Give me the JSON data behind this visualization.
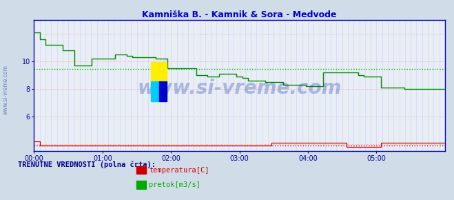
{
  "title": "Kamniška B. - Kamnik & Sora - Medvode",
  "title_color": "#0000cc",
  "bg_color": "#d0dce8",
  "plot_bg_color": "#e8eef4",
  "grid_color_h": "#ff9999",
  "grid_color_v": "#ccccff",
  "ylabel_color": "#0000aa",
  "yticks": [
    6,
    8,
    10
  ],
  "ylim": [
    3.5,
    13.0
  ],
  "xtick_labels": [
    "00:00",
    "01:00",
    "02:00",
    "03:00",
    "04:00",
    "05:00"
  ],
  "watermark": "www.si-vreme.com",
  "watermark_color": "#1a3ab8",
  "watermark_alpha": 0.3,
  "legend_label": "TRENUTNE VREDNOSTI (polna črta):",
  "legend_items": [
    {
      "label": "temperatura[C]",
      "color": "#cc0000"
    },
    {
      "label": "pretok[m3/s]",
      "color": "#00aa00"
    }
  ],
  "temp_color": "#cc0000",
  "flow_color": "#008800",
  "flow_avg_color": "#00bb00",
  "flow_avg_value": 9.43,
  "temp_avg_value": 3.9,
  "temp_avg_color": "#cc0000",
  "axis_color": "#0000cc",
  "tick_color": "#0000aa",
  "n_points": 72,
  "flow_data": [
    12.1,
    11.6,
    11.2,
    11.2,
    11.2,
    10.8,
    10.8,
    9.7,
    9.7,
    9.7,
    10.2,
    10.2,
    10.2,
    10.2,
    10.5,
    10.5,
    10.4,
    10.3,
    10.3,
    10.3,
    10.3,
    10.2,
    10.2,
    9.5,
    9.5,
    9.5,
    9.5,
    9.5,
    9.0,
    9.0,
    8.9,
    8.9,
    9.1,
    9.1,
    9.1,
    8.9,
    8.8,
    8.6,
    8.6,
    8.6,
    8.5,
    8.5,
    8.5,
    8.3,
    8.3,
    8.3,
    8.3,
    8.2,
    8.2,
    8.2,
    9.2,
    9.2,
    9.2,
    9.2,
    9.2,
    9.2,
    9.0,
    8.9,
    8.9,
    8.9,
    8.1,
    8.1,
    8.1,
    8.1,
    8.0,
    8.0,
    8.0,
    8.0,
    8.0,
    8.0,
    8.0,
    8.0
  ],
  "temp_data": [
    4.2,
    3.9,
    3.9,
    3.9,
    3.9,
    3.9,
    3.9,
    3.9,
    3.9,
    3.9,
    3.9,
    3.9,
    3.9,
    3.9,
    3.9,
    3.9,
    3.9,
    3.9,
    3.9,
    3.9,
    3.9,
    3.9,
    3.9,
    3.9,
    3.9,
    3.9,
    3.9,
    3.9,
    3.9,
    3.9,
    3.9,
    3.9,
    3.9,
    3.9,
    3.9,
    3.9,
    3.9,
    3.9,
    3.9,
    3.9,
    3.9,
    4.1,
    4.1,
    4.1,
    4.1,
    4.1,
    4.1,
    4.1,
    4.1,
    4.1,
    4.1,
    4.1,
    4.1,
    4.1,
    3.8,
    3.8,
    3.8,
    3.8,
    3.8,
    3.8,
    4.1,
    4.1,
    4.1,
    4.1,
    4.1,
    4.1,
    4.1,
    4.1,
    4.1,
    4.1,
    4.1,
    4.1
  ],
  "logo_colors": [
    "#ffee00",
    "#00ccff",
    "#0000cc"
  ]
}
